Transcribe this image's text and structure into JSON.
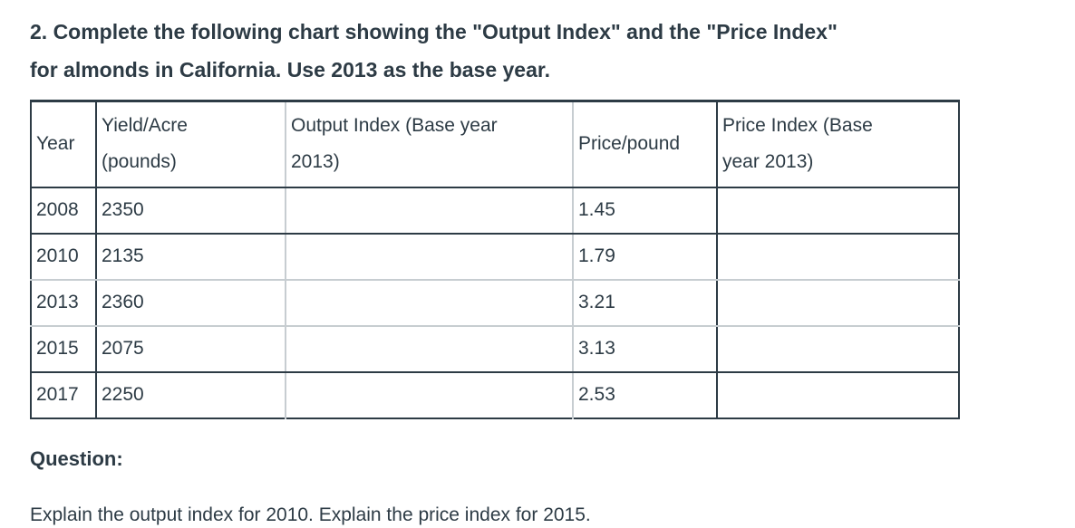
{
  "page": {
    "title": "2. Complete the following chart showing the \"Output Index\" and the \"Price Index\"\nfor almonds in California. Use 2013 as the base year.",
    "question_label": "Question:",
    "question_text": "Explain the output index for 2010. Explain the price index for 2015."
  },
  "colors": {
    "text": "#2d3b45",
    "border_dark": "#2d3b45",
    "border_light": "#c7cdd1",
    "background": "#ffffff"
  },
  "table": {
    "columns": [
      {
        "key": "year",
        "label": "Year"
      },
      {
        "key": "yield_per_acre",
        "label": "Yield/Acre\n(pounds)"
      },
      {
        "key": "output_index",
        "label": "Output Index (Base year\n2013)"
      },
      {
        "key": "price_per_pound",
        "label": "Price/pound"
      },
      {
        "key": "price_index",
        "label": "Price Index (Base\nyear 2013)"
      }
    ],
    "rows": [
      {
        "year": "2008",
        "yield_per_acre": "2350",
        "output_index": "",
        "price_per_pound": "1.45",
        "price_index": ""
      },
      {
        "year": "2010",
        "yield_per_acre": "2135",
        "output_index": "",
        "price_per_pound": "1.79",
        "price_index": ""
      },
      {
        "year": "2013",
        "yield_per_acre": "2360",
        "output_index": "",
        "price_per_pound": "3.21",
        "price_index": ""
      },
      {
        "year": "2015",
        "yield_per_acre": "2075",
        "output_index": "",
        "price_per_pound": "3.13",
        "price_index": ""
      },
      {
        "year": "2017",
        "yield_per_acre": "2250",
        "output_index": "",
        "price_per_pound": "2.53",
        "price_index": ""
      }
    ]
  },
  "chart_data": {
    "type": "table",
    "title": "Output Index and Price Index for almonds in California (base year 2013)",
    "columns": [
      "Year",
      "Yield/Acre (pounds)",
      "Output Index (Base year 2013)",
      "Price/pound",
      "Price Index (Base year 2013)"
    ],
    "rows": [
      [
        2008,
        2350,
        null,
        1.45,
        null
      ],
      [
        2010,
        2135,
        null,
        1.79,
        null
      ],
      [
        2013,
        2360,
        null,
        3.21,
        null
      ],
      [
        2015,
        2075,
        null,
        3.13,
        null
      ],
      [
        2017,
        2250,
        null,
        2.53,
        null
      ]
    ],
    "base_year": 2013
  }
}
